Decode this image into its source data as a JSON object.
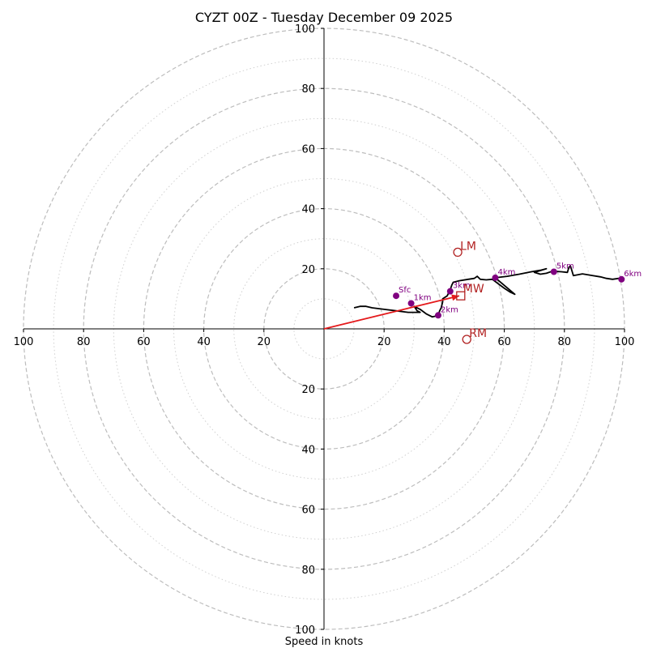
{
  "chart_data": {
    "type": "hodograph",
    "title": "CYZT 00Z - Tuesday December 09 2025",
    "xlabel": "Speed in knots",
    "units": "knots",
    "max_speed": 100,
    "major_rings": [
      20,
      40,
      60,
      80,
      100
    ],
    "minor_rings": [
      10,
      30,
      50,
      70,
      90
    ],
    "tick_labels": [
      "20",
      "40",
      "60",
      "80",
      "100"
    ],
    "trace": [
      [
        10,
        7
      ],
      [
        12,
        7.5
      ],
      [
        14,
        7.5
      ],
      [
        16,
        7
      ],
      [
        20,
        6.5
      ],
      [
        24,
        6
      ],
      [
        28,
        5.5
      ],
      [
        32,
        5.5
      ],
      [
        31,
        6
      ],
      [
        30,
        7.5
      ],
      [
        32,
        6.5
      ],
      [
        34,
        5
      ],
      [
        36,
        4
      ],
      [
        37,
        4.2
      ],
      [
        38,
        4.5
      ],
      [
        38.5,
        6
      ],
      [
        39,
        7
      ],
      [
        39.5,
        9
      ],
      [
        39.5,
        10
      ],
      [
        41,
        11
      ],
      [
        42,
        13
      ],
      [
        42.5,
        14.5
      ],
      [
        43,
        15.5
      ],
      [
        45,
        16
      ],
      [
        48,
        16.5
      ],
      [
        50,
        16.8
      ],
      [
        51,
        17.5
      ],
      [
        52,
        16.5
      ],
      [
        54,
        16.3
      ],
      [
        56,
        16.5
      ],
      [
        58,
        15
      ],
      [
        60,
        13.5
      ],
      [
        62,
        12.2
      ],
      [
        63.5,
        11.5
      ],
      [
        57,
        17
      ],
      [
        61,
        17.5
      ],
      [
        65,
        18.2
      ],
      [
        69,
        19
      ],
      [
        72,
        19.5
      ],
      [
        74,
        20
      ],
      [
        70,
        18.8
      ],
      [
        72,
        18.2
      ],
      [
        74,
        18.5
      ],
      [
        76,
        19.2
      ],
      [
        79,
        19
      ],
      [
        81,
        18.8
      ],
      [
        81.5,
        20.5
      ],
      [
        82,
        21
      ],
      [
        83,
        17.7
      ],
      [
        86,
        18.3
      ],
      [
        89,
        17.8
      ],
      [
        92,
        17.3
      ],
      [
        94,
        16.8
      ],
      [
        96,
        16.5
      ],
      [
        98,
        16.8
      ],
      [
        99,
        16.5
      ],
      [
        100,
        16.8
      ]
    ],
    "height_markers": [
      {
        "label": "Sfc",
        "u": 24,
        "v": 11
      },
      {
        "label": "1km",
        "u": 29,
        "v": 8.5
      },
      {
        "label": "2km",
        "u": 38,
        "v": 4.5
      },
      {
        "label": "3km",
        "u": 42,
        "v": 12.5
      },
      {
        "label": "4km",
        "u": 57,
        "v": 17
      },
      {
        "label": "5km",
        "u": 76.5,
        "v": 19
      },
      {
        "label": "6km",
        "u": 99,
        "v": 16.5
      }
    ],
    "storm_motions": {
      "LM": {
        "u": 44.5,
        "v": 25.5
      },
      "MW": {
        "u": 45.5,
        "v": 11
      },
      "RM": {
        "u": 47.5,
        "v": -3.5
      }
    },
    "shear_vector": {
      "u": 45,
      "v": 11
    }
  }
}
